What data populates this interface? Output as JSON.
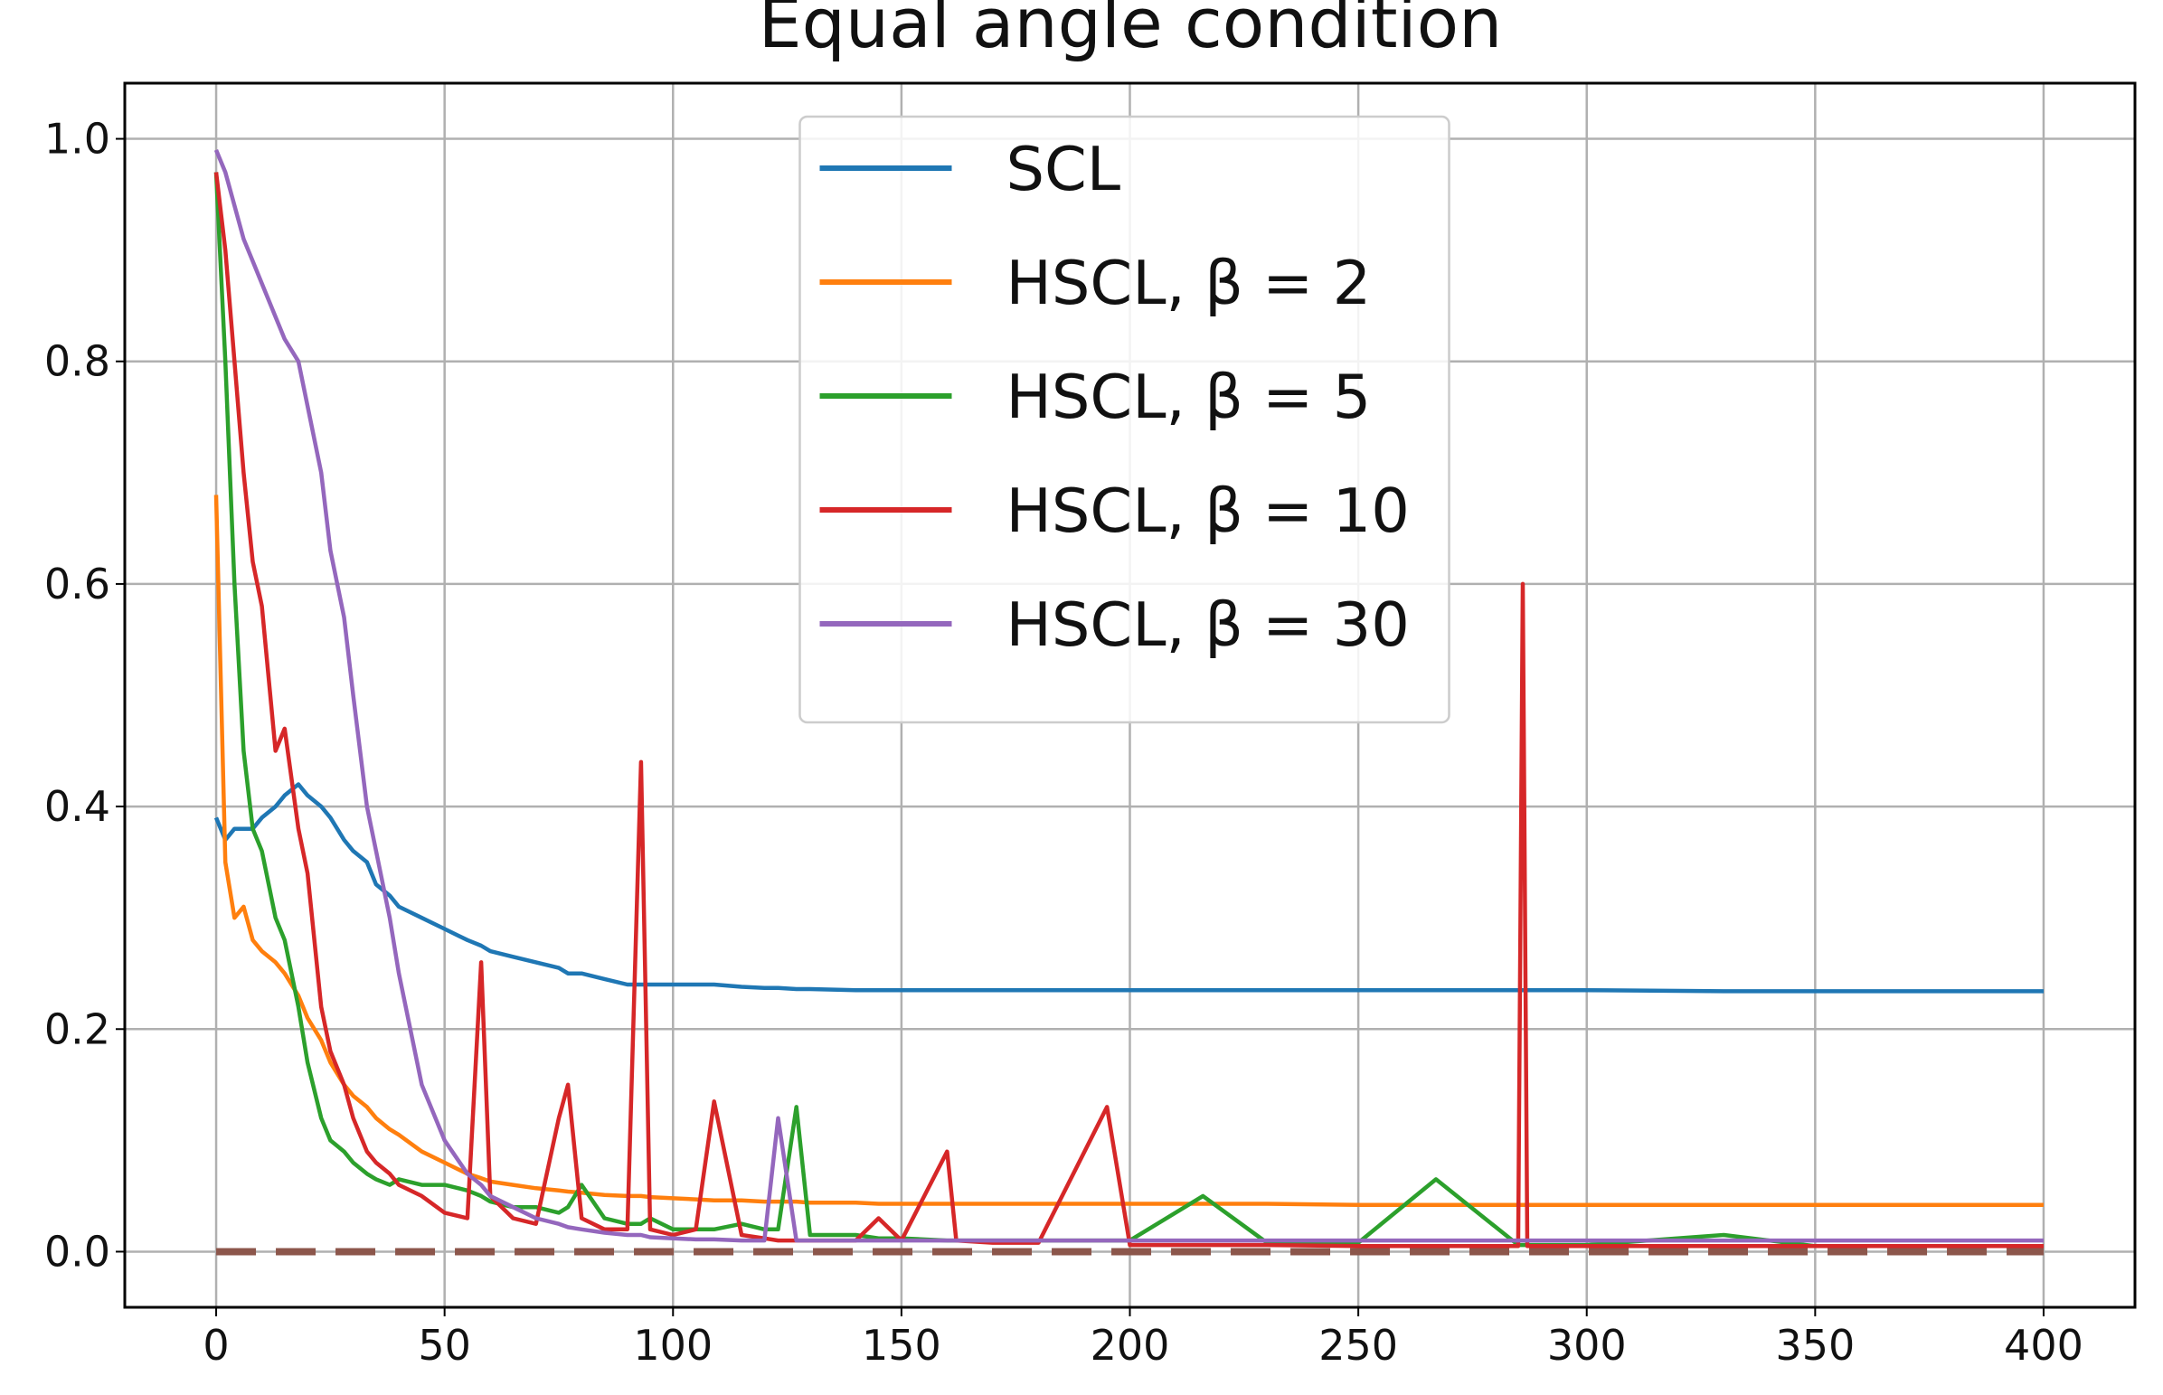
{
  "chart_data": {
    "type": "line",
    "title": "Equal angle condition",
    "x": [
      0,
      2,
      4,
      6,
      8,
      10,
      13,
      15,
      18,
      20,
      23,
      25,
      28,
      30,
      33,
      35,
      38,
      40,
      45,
      50,
      55,
      58,
      60,
      65,
      70,
      75,
      77,
      80,
      85,
      90,
      93,
      95,
      100,
      105,
      109,
      115,
      120,
      123,
      127,
      130,
      140,
      145,
      150,
      160,
      162,
      170,
      180,
      195,
      200,
      216,
      230,
      250,
      267,
      285,
      286,
      287,
      300,
      330,
      350,
      400
    ],
    "series": [
      {
        "name": "SCL",
        "color": "#1f77b4",
        "values": [
          0.39,
          0.37,
          0.38,
          0.38,
          0.38,
          0.39,
          0.4,
          0.41,
          0.42,
          0.41,
          0.4,
          0.39,
          0.37,
          0.36,
          0.35,
          0.33,
          0.32,
          0.31,
          0.3,
          0.29,
          0.28,
          0.275,
          0.27,
          0.265,
          0.26,
          0.255,
          0.25,
          0.25,
          0.245,
          0.24,
          0.24,
          0.24,
          0.24,
          0.24,
          0.24,
          0.238,
          0.237,
          0.237,
          0.236,
          0.236,
          0.235,
          0.235,
          0.235,
          0.235,
          0.235,
          0.235,
          0.235,
          0.235,
          0.235,
          0.235,
          0.235,
          0.235,
          0.235,
          0.235,
          0.235,
          0.235,
          0.235,
          0.234,
          0.234,
          0.234
        ]
      },
      {
        "name": "HSCL, β = 2",
        "color": "#ff7f0e",
        "values": [
          0.68,
          0.35,
          0.3,
          0.31,
          0.28,
          0.27,
          0.26,
          0.25,
          0.23,
          0.21,
          0.19,
          0.17,
          0.15,
          0.14,
          0.13,
          0.12,
          0.11,
          0.105,
          0.09,
          0.08,
          0.07,
          0.066,
          0.063,
          0.06,
          0.057,
          0.055,
          0.054,
          0.053,
          0.051,
          0.05,
          0.05,
          0.049,
          0.048,
          0.047,
          0.046,
          0.046,
          0.045,
          0.045,
          0.045,
          0.044,
          0.044,
          0.043,
          0.043,
          0.043,
          0.043,
          0.043,
          0.043,
          0.043,
          0.043,
          0.043,
          0.043,
          0.042,
          0.042,
          0.042,
          0.042,
          0.042,
          0.042,
          0.042,
          0.042,
          0.042
        ]
      },
      {
        "name": "HSCL, β = 5",
        "color": "#2ca02c",
        "values": [
          0.97,
          0.8,
          0.6,
          0.45,
          0.38,
          0.36,
          0.3,
          0.28,
          0.22,
          0.17,
          0.12,
          0.1,
          0.09,
          0.08,
          0.07,
          0.065,
          0.06,
          0.065,
          0.06,
          0.06,
          0.055,
          0.05,
          0.045,
          0.04,
          0.04,
          0.035,
          0.04,
          0.06,
          0.03,
          0.025,
          0.025,
          0.03,
          0.02,
          0.02,
          0.02,
          0.025,
          0.02,
          0.02,
          0.13,
          0.015,
          0.015,
          0.012,
          0.012,
          0.01,
          0.01,
          0.01,
          0.01,
          0.01,
          0.01,
          0.05,
          0.008,
          0.008,
          0.065,
          0.006,
          0.006,
          0.006,
          0.006,
          0.015,
          0.005,
          0.005
        ]
      },
      {
        "name": "HSCL, β = 10",
        "color": "#d62728",
        "values": [
          0.97,
          0.9,
          0.8,
          0.7,
          0.62,
          0.58,
          0.45,
          0.47,
          0.38,
          0.34,
          0.22,
          0.18,
          0.15,
          0.12,
          0.09,
          0.08,
          0.07,
          0.06,
          0.05,
          0.035,
          0.03,
          0.26,
          0.05,
          0.03,
          0.025,
          0.12,
          0.15,
          0.03,
          0.02,
          0.02,
          0.44,
          0.02,
          0.015,
          0.02,
          0.135,
          0.015,
          0.012,
          0.01,
          0.01,
          0.01,
          0.01,
          0.03,
          0.01,
          0.09,
          0.01,
          0.008,
          0.008,
          0.13,
          0.006,
          0.006,
          0.006,
          0.005,
          0.005,
          0.005,
          0.6,
          0.005,
          0.005,
          0.005,
          0.005,
          0.005
        ]
      },
      {
        "name": "HSCL, β = 30",
        "color": "#9467bd",
        "values": [
          0.99,
          0.97,
          0.94,
          0.91,
          0.89,
          0.87,
          0.84,
          0.82,
          0.8,
          0.76,
          0.7,
          0.63,
          0.57,
          0.5,
          0.4,
          0.36,
          0.3,
          0.25,
          0.15,
          0.1,
          0.07,
          0.06,
          0.05,
          0.04,
          0.03,
          0.025,
          0.022,
          0.02,
          0.017,
          0.015,
          0.015,
          0.013,
          0.012,
          0.011,
          0.011,
          0.01,
          0.01,
          0.12,
          0.01,
          0.01,
          0.01,
          0.01,
          0.01,
          0.01,
          0.01,
          0.01,
          0.01,
          0.01,
          0.01,
          0.01,
          0.01,
          0.01,
          0.01,
          0.01,
          0.01,
          0.01,
          0.01,
          0.01,
          0.01,
          0.01
        ]
      }
    ],
    "hline": {
      "y": 0,
      "xmin": 0,
      "xmax": 400,
      "color": "#8c564b",
      "dashed": true
    },
    "xlim": [
      -20,
      420
    ],
    "ylim": [
      -0.05,
      1.05
    ],
    "xticks": [
      0,
      50,
      100,
      150,
      200,
      250,
      300,
      350,
      400
    ],
    "yticks": [
      {
        "value": 0,
        "label": "0.0"
      },
      {
        "value": 0.2,
        "label": "0.2"
      },
      {
        "value": 0.4,
        "label": "0.4"
      },
      {
        "value": 0.6,
        "label": "0.6"
      },
      {
        "value": 0.8,
        "label": "0.8"
      },
      {
        "value": 1.0,
        "label": "1.0"
      }
    ],
    "grid": true,
    "legend": "upper center"
  }
}
